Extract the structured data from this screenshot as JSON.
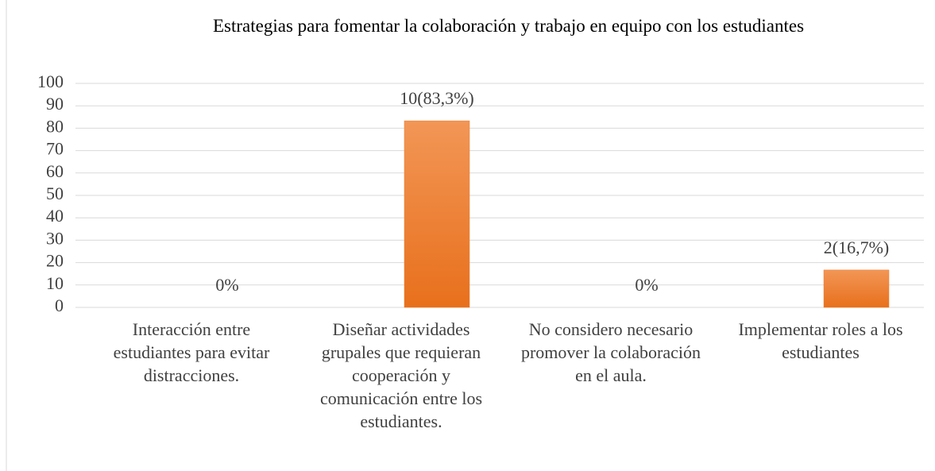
{
  "chart_data": {
    "type": "bar",
    "title": "Estrategias para fomentar la colaboración y trabajo en equipo con los estudiantes",
    "categories": [
      "Interacción entre estudiantes para evitar distracciones.",
      "Diseñar actividades grupales que requieran cooperación y comunicación entre los estudiantes.",
      "No considero necesario promover la colaboración en el aula.",
      "Implementar roles a los estudiantes"
    ],
    "values": [
      0,
      83.3,
      0,
      16.7
    ],
    "value_labels": [
      "0%",
      "10(83,3%)",
      "0%",
      "2(16,7%)"
    ],
    "color": "#ed7d31",
    "ylim": [
      0,
      100
    ],
    "yticks": [
      0,
      10,
      20,
      30,
      40,
      50,
      60,
      70,
      80,
      90,
      100
    ],
    "grid": true
  }
}
